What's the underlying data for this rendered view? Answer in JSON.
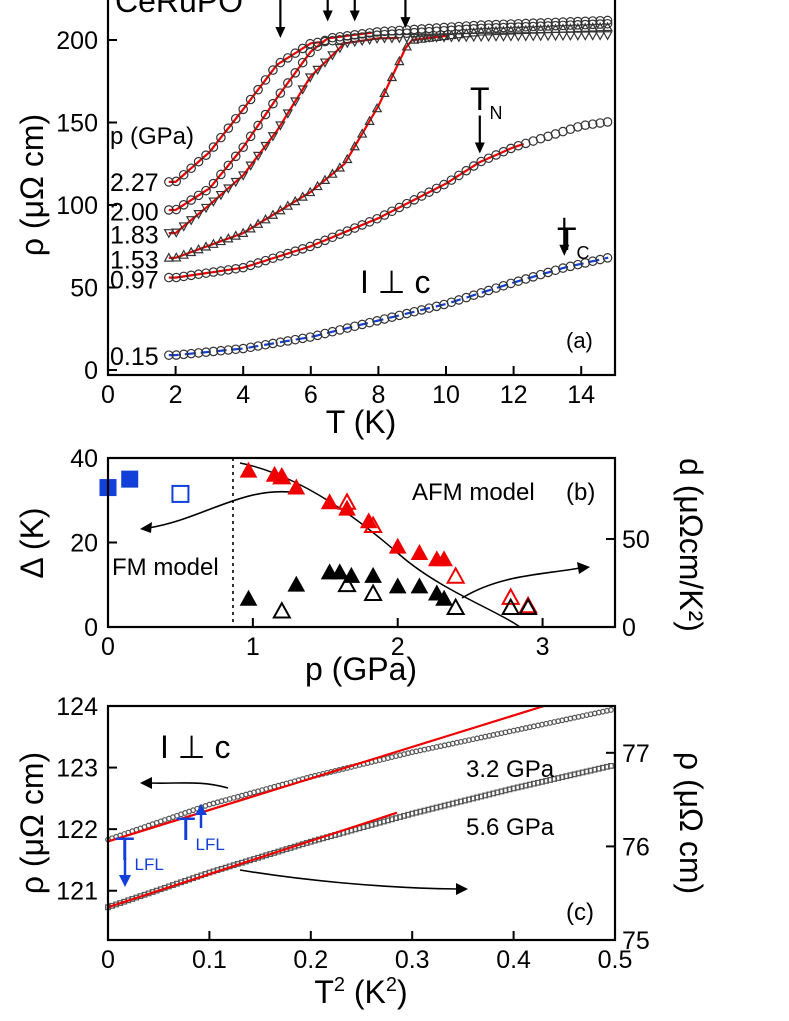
{
  "chart_data": [
    {
      "type": "scatter",
      "panel_label": "(a)",
      "title": "CeRuPO",
      "xlabel": "T (K)",
      "ylabel": "ρ (μΩ cm)",
      "xlim": [
        0,
        15
      ],
      "ylim": [
        0,
        220
      ],
      "xticks": [
        "0",
        "2",
        "4",
        "6",
        "8",
        "10",
        "12",
        "14"
      ],
      "yticks": [
        "0",
        "50",
        "100",
        "150",
        "200"
      ],
      "pressure_header": "p (GPa)",
      "annotation_geometry": "I ⊥ c",
      "annotation_TN": {
        "main": "T",
        "sub": "N"
      },
      "annotation_TC": {
        "main": "T",
        "sub": "C"
      },
      "marker_arrows_T": [
        5.1,
        6.5,
        7.3,
        8.8,
        11.0,
        13.5
      ],
      "series": [
        {
          "name": "0.15",
          "marker": "circle",
          "rho0": 8.5,
          "T_transition": 13.5,
          "rho_top": 70,
          "values": [
            [
              2,
              9
            ],
            [
              4,
              13
            ],
            [
              6,
              20
            ],
            [
              8,
              30
            ],
            [
              10,
              40
            ],
            [
              12,
              53
            ],
            [
              13.5,
              62
            ],
            [
              15,
              69
            ]
          ]
        },
        {
          "name": "0.97",
          "marker": "circle",
          "rho0": 55,
          "T_transition": 11.0,
          "rho_top": 152,
          "values": [
            [
              2,
              56
            ],
            [
              4,
              62
            ],
            [
              6,
              75
            ],
            [
              8,
              92
            ],
            [
              10,
              113
            ],
            [
              11,
              126
            ],
            [
              12,
              135
            ],
            [
              14,
              148
            ],
            [
              15,
              151
            ]
          ]
        },
        {
          "name": "1.53",
          "marker": "triangle",
          "rho0": 67,
          "T_transition": 8.8,
          "rho_top": 210,
          "values": [
            [
              2,
              68
            ],
            [
              4,
              83
            ],
            [
              6,
              108
            ],
            [
              7,
              125
            ],
            [
              8,
              160
            ],
            [
              8.8,
              195
            ],
            [
              9,
              200
            ],
            [
              11,
              205
            ],
            [
              15,
              208
            ]
          ]
        },
        {
          "name": "1.83",
          "marker": "triangle-down",
          "rho0": 82,
          "T_transition": 7.3,
          "rho_top": 203,
          "values": [
            [
              2,
              83
            ],
            [
              3,
              100
            ],
            [
              4,
              118
            ],
            [
              5,
              145
            ],
            [
              6,
              178
            ],
            [
              7,
              198
            ],
            [
              8,
              201
            ],
            [
              11,
              202
            ],
            [
              15,
              203
            ]
          ]
        },
        {
          "name": "2.00",
          "marker": "circle",
          "rho0": 96,
          "T_transition": 6.5,
          "rho_top": 212,
          "values": [
            [
              2,
              97
            ],
            [
              3,
              110
            ],
            [
              4,
              135
            ],
            [
              5,
              165
            ],
            [
              6,
              193
            ],
            [
              6.5,
              201
            ],
            [
              8,
              205
            ],
            [
              11,
              209
            ],
            [
              15,
              212
            ]
          ]
        },
        {
          "name": "2.27",
          "marker": "circle",
          "rho0": 114,
          "T_transition": 5.1,
          "rho_top": 210,
          "values": [
            [
              2,
              114
            ],
            [
              3,
              132
            ],
            [
              4,
              158
            ],
            [
              5,
              185
            ],
            [
              6,
              198
            ],
            [
              8,
              203
            ],
            [
              11,
              207
            ],
            [
              15,
              210
            ]
          ]
        }
      ]
    },
    {
      "type": "scatter",
      "panel_label": "(b)",
      "xlabel": "p (GPa)",
      "ylabel": "Δ (K)",
      "y2label": "d (μΩcm/K²)",
      "xlim": [
        0,
        3.5
      ],
      "ylim": [
        0,
        40
      ],
      "y2lim": [
        0,
        96
      ],
      "xticks": [
        "0",
        "1",
        "2",
        "3"
      ],
      "yticks": [
        "0",
        "20",
        "40"
      ],
      "y2ticks": [
        "0",
        "50"
      ],
      "text_fm": "FM model",
      "text_afm": "AFM model",
      "series": [
        {
          "name": "Δ FM (filled)",
          "color": "#1240d8",
          "marker": "square-filled",
          "values": [
            [
              0.0,
              33
            ],
            [
              0.15,
              35
            ]
          ]
        },
        {
          "name": "Δ FM (open)",
          "color": "#1240d8",
          "marker": "square-open",
          "values": [
            [
              0.5,
              31.5
            ]
          ]
        },
        {
          "name": "Δ AFM (filled)",
          "color": "#ee0000",
          "marker": "triangle-filled",
          "values": [
            [
              0.97,
              37
            ],
            [
              1.15,
              36
            ],
            [
              1.2,
              35.5
            ],
            [
              1.3,
              33
            ],
            [
              1.53,
              29.5
            ],
            [
              1.65,
              28
            ],
            [
              1.8,
              25
            ],
            [
              2.0,
              19
            ],
            [
              2.15,
              17.5
            ],
            [
              2.27,
              16
            ],
            [
              2.32,
              16
            ]
          ]
        },
        {
          "name": "Δ AFM (open)",
          "color": "#ee0000",
          "marker": "triangle-open",
          "values": [
            [
              1.2,
              35.5
            ],
            [
              1.65,
              29.5
            ],
            [
              1.83,
              24
            ],
            [
              2.4,
              12
            ],
            [
              2.78,
              7
            ],
            [
              2.9,
              5
            ]
          ]
        },
        {
          "name": "d (filled)",
          "color": "#000000",
          "marker": "triangle-filled",
          "axis": "right",
          "values": [
            [
              0.97,
              16
            ],
            [
              1.3,
              24
            ],
            [
              1.53,
              31
            ],
            [
              1.6,
              31
            ],
            [
              1.68,
              29
            ],
            [
              1.83,
              29
            ],
            [
              2.0,
              23
            ],
            [
              2.15,
              23
            ],
            [
              2.27,
              19
            ],
            [
              2.32,
              16
            ]
          ]
        },
        {
          "name": "d (open)",
          "color": "#000000",
          "marker": "triangle-open",
          "axis": "right",
          "values": [
            [
              1.2,
              9
            ],
            [
              1.65,
              24
            ],
            [
              1.83,
              19
            ],
            [
              2.4,
              11
            ],
            [
              2.78,
              11
            ],
            [
              2.9,
              11
            ]
          ]
        }
      ]
    },
    {
      "type": "scatter",
      "panel_label": "(c)",
      "xlabel": "T² (K²)",
      "ylabel": "ρ (μΩ cm)",
      "y2label": "ρ (μΩ cm)",
      "xlim": [
        0,
        0.5
      ],
      "ylim": [
        120.2,
        124
      ],
      "y2lim": [
        75,
        77.5
      ],
      "xticks": [
        "0",
        "0.1",
        "0.2",
        "0.3",
        "0.4",
        "0.5"
      ],
      "yticks": [
        "121",
        "122",
        "123",
        "124"
      ],
      "y2ticks": [
        "75",
        "76",
        "77"
      ],
      "annotation_geometry": "I ⊥ c",
      "annotation_TLFL": {
        "main": "T",
        "sub": "LFL"
      },
      "series": [
        {
          "name": "3.2 GPa",
          "axis": "left",
          "marker": "circle",
          "values": [
            [
              0,
              121.83
            ],
            [
              0.1,
              122.4
            ],
            [
              0.2,
              122.85
            ],
            [
              0.3,
              123.25
            ],
            [
              0.4,
              123.6
            ],
            [
              0.5,
              123.95
            ]
          ],
          "fit": [
            [
              0,
              121.8
            ],
            [
              0.43,
              124.0
            ]
          ],
          "T_LFL_sq": 0.09
        },
        {
          "name": "5.6 GPa",
          "axis": "right",
          "marker": "square",
          "values": [
            [
              0,
              75.35
            ],
            [
              0.1,
              75.72
            ],
            [
              0.2,
              76.05
            ],
            [
              0.3,
              76.35
            ],
            [
              0.4,
              76.62
            ],
            [
              0.5,
              76.87
            ]
          ],
          "fit": [
            [
              0,
              75.35
            ],
            [
              0.285,
              76.36
            ]
          ],
          "T_LFL_sq": 0.018
        }
      ]
    }
  ]
}
